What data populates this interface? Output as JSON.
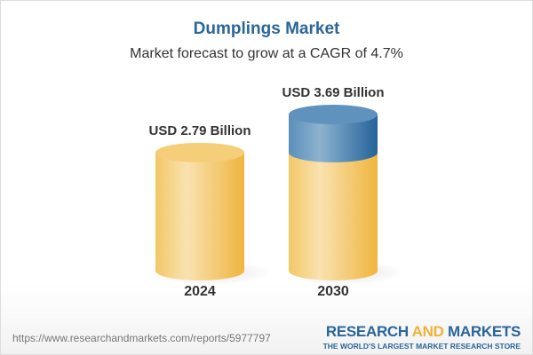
{
  "header": {
    "title": "Dumplings Market",
    "subtitle": "Market forecast to grow at a CAGR of 4.7%"
  },
  "chart_data": {
    "type": "bar",
    "style": "3d-cylinder",
    "categories": [
      "2024",
      "2030"
    ],
    "values": [
      2.79,
      3.69
    ],
    "data_labels": [
      "USD 2.79 Billion",
      "USD 3.69 Billion"
    ],
    "unit": "USD Billion",
    "colors": {
      "base": "#f2c15a",
      "growth": "#3a73a3"
    },
    "note": ""
  },
  "footer": {
    "url": "https://www.researchandmarkets.com/reports/5977797",
    "logo_part1": "RESEARCH ",
    "logo_part2": "AND",
    "logo_part3": " MARKETS",
    "logo_tagline": "THE WORLD'S LARGEST MARKET RESEARCH STORE"
  }
}
